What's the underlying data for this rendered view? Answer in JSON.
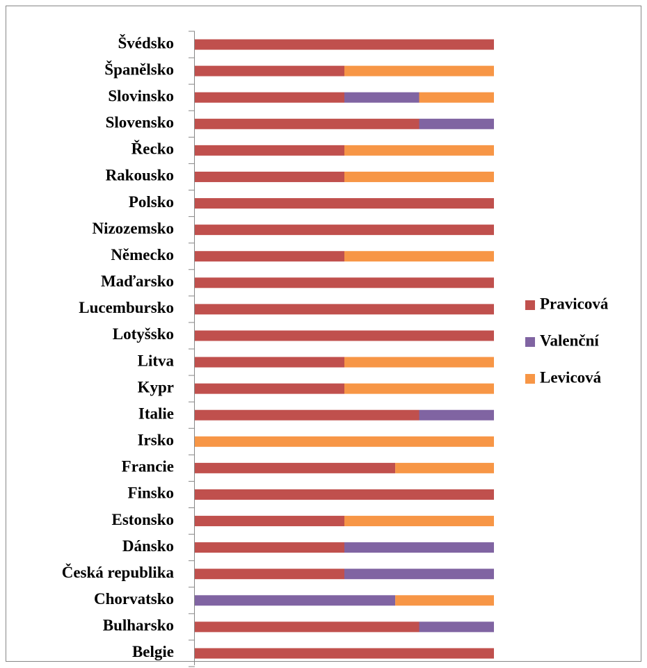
{
  "chart_data": {
    "type": "bar",
    "orientation": "horizontal",
    "stacked": true,
    "categories": [
      "Švédsko",
      "Španělsko",
      "Slovinsko",
      "Slovensko",
      "Řecko",
      "Rakousko",
      "Polsko",
      "Nizozemsko",
      "Německo",
      "Maďarsko",
      "Lucembursko",
      "Lotyšsko",
      "Litva",
      "Kypr",
      "Italie",
      "Irsko",
      "Francie",
      "Finsko",
      "Estonsko",
      "Dánsko",
      "Česká republika",
      "Chorvatsko",
      "Bulharsko",
      "Belgie"
    ],
    "series": [
      {
        "name": "Pravicová",
        "color": "#c0504d",
        "values": [
          100,
          50,
          50,
          75,
          50,
          50,
          100,
          100,
          50,
          100,
          100,
          100,
          50,
          50,
          75,
          0,
          67,
          100,
          50,
          50,
          50,
          0,
          75,
          100
        ]
      },
      {
        "name": "Valenční",
        "color": "#8064a2",
        "values": [
          0,
          0,
          25,
          25,
          0,
          0,
          0,
          0,
          0,
          0,
          0,
          0,
          0,
          0,
          25,
          0,
          0,
          0,
          0,
          50,
          50,
          67,
          25,
          0
        ]
      },
      {
        "name": "Levicová",
        "color": "#f79646",
        "values": [
          0,
          50,
          25,
          0,
          50,
          50,
          0,
          0,
          50,
          0,
          0,
          0,
          50,
          50,
          0,
          100,
          33,
          0,
          50,
          0,
          0,
          33,
          0,
          0
        ]
      }
    ],
    "xlim": [
      0,
      100
    ],
    "legend": "right"
  }
}
